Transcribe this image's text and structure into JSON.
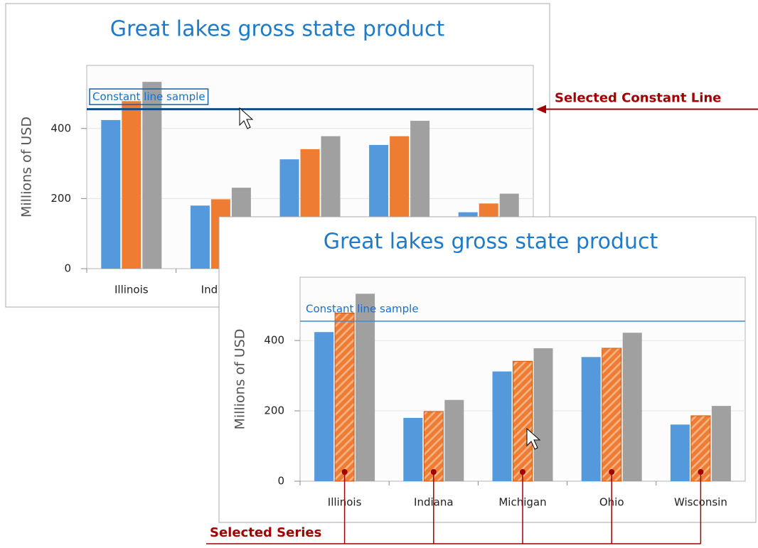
{
  "chart_data": [
    {
      "type": "bar",
      "title": "Great lakes gross state product",
      "y_axis_label": "Millions of USD",
      "categories": [
        "Illinois",
        "Indiana",
        "Michigan",
        "Ohio",
        "Wisconsin"
      ],
      "series": [
        {
          "color": "#5599dd",
          "values": [
            424,
            180,
            312,
            353,
            161
          ]
        },
        {
          "color": "#ee7d33",
          "values": [
            478,
            198,
            341,
            378,
            186
          ]
        },
        {
          "color": "#a0a0a0",
          "values": [
            533,
            231,
            378,
            422,
            214
          ]
        }
      ],
      "ylim": [
        0,
        580
      ],
      "yticks": [
        0,
        200,
        400
      ],
      "grid": true,
      "constant_line": {
        "value": 455,
        "label": "Constant line sample",
        "selected": true
      }
    },
    {
      "type": "bar",
      "title": "Great lakes gross state product",
      "y_axis_label": "Millions of USD",
      "categories": [
        "Illinois",
        "Indiana",
        "Michigan",
        "Ohio",
        "Wisconsin"
      ],
      "series": [
        {
          "color": "#5599dd",
          "values": [
            424,
            180,
            312,
            353,
            161
          ]
        },
        {
          "color": "#ee7d33",
          "values": [
            478,
            198,
            341,
            378,
            186
          ],
          "selected": true
        },
        {
          "color": "#a0a0a0",
          "values": [
            533,
            231,
            378,
            422,
            214
          ]
        }
      ],
      "ylim": [
        0,
        580
      ],
      "yticks": [
        0,
        200,
        400
      ],
      "grid": true,
      "constant_line": {
        "value": 455,
        "label": "Constant line sample",
        "selected": false
      }
    }
  ],
  "annotations": {
    "constant_line": "Selected Constant Line",
    "series": "Selected Series"
  }
}
